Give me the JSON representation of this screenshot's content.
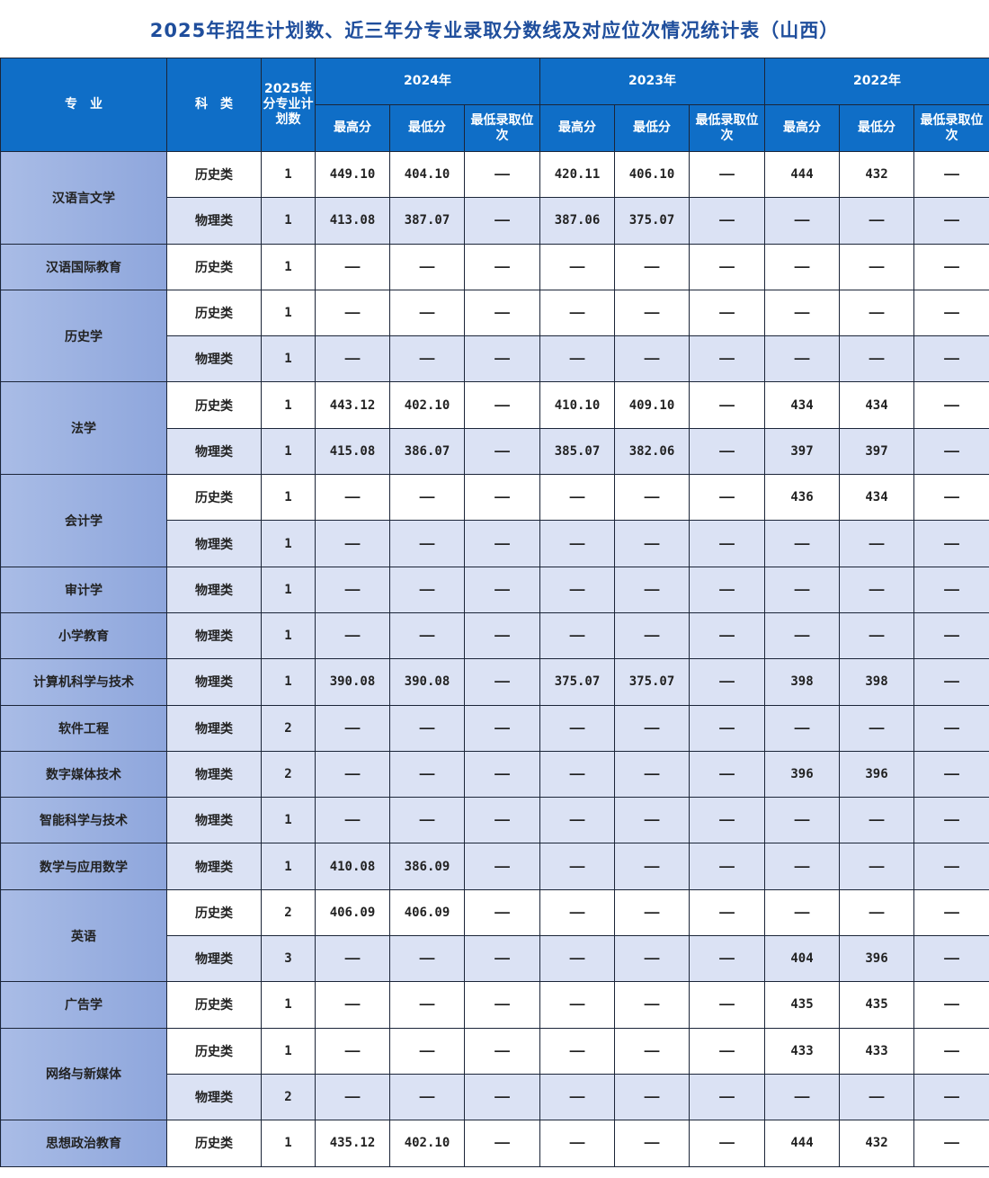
{
  "title": "2025年招生计划数、近三年分专业录取分数线及对应位次情况统计表（山西）",
  "header": {
    "major": "专　业",
    "category": "科　类",
    "plan": "2025年分专业计划数",
    "years": [
      "2024年",
      "2023年",
      "2022年"
    ],
    "sub": [
      "最高分",
      "最低分",
      "最低录取位次"
    ]
  },
  "colors": {
    "header_bg": "#0f6ec7",
    "major_bg": "#9bb0e1",
    "physics_row_bg": "#dbe2f4",
    "title": "#1f4e9c"
  },
  "groups": [
    {
      "major": "汉语言文学",
      "rows": [
        {
          "type": "历史类",
          "plan": "1",
          "values": [
            "449.10",
            "404.10",
            "——",
            "420.11",
            "406.10",
            "——",
            "444",
            "432",
            "——"
          ]
        },
        {
          "type": "物理类",
          "plan": "1",
          "values": [
            "413.08",
            "387.07",
            "——",
            "387.06",
            "375.07",
            "——",
            "——",
            "——",
            "——"
          ]
        }
      ]
    },
    {
      "major": "汉语国际教育",
      "rows": [
        {
          "type": "历史类",
          "plan": "1",
          "values": [
            "——",
            "——",
            "——",
            "——",
            "——",
            "——",
            "——",
            "——",
            "——"
          ]
        }
      ]
    },
    {
      "major": "历史学",
      "rows": [
        {
          "type": "历史类",
          "plan": "1",
          "values": [
            "——",
            "——",
            "——",
            "——",
            "——",
            "——",
            "——",
            "——",
            "——"
          ]
        },
        {
          "type": "物理类",
          "plan": "1",
          "values": [
            "——",
            "——",
            "——",
            "——",
            "——",
            "——",
            "——",
            "——",
            "——"
          ]
        }
      ]
    },
    {
      "major": "法学",
      "rows": [
        {
          "type": "历史类",
          "plan": "1",
          "values": [
            "443.12",
            "402.10",
            "——",
            "410.10",
            "409.10",
            "——",
            "434",
            "434",
            "——"
          ]
        },
        {
          "type": "物理类",
          "plan": "1",
          "values": [
            "415.08",
            "386.07",
            "——",
            "385.07",
            "382.06",
            "——",
            "397",
            "397",
            "——"
          ]
        }
      ]
    },
    {
      "major": "会计学",
      "rows": [
        {
          "type": "历史类",
          "plan": "1",
          "values": [
            "——",
            "——",
            "——",
            "——",
            "——",
            "——",
            "436",
            "434",
            "——"
          ]
        },
        {
          "type": "物理类",
          "plan": "1",
          "values": [
            "——",
            "——",
            "——",
            "——",
            "——",
            "——",
            "——",
            "——",
            "——"
          ]
        }
      ]
    },
    {
      "major": "审计学",
      "rows": [
        {
          "type": "物理类",
          "plan": "1",
          "values": [
            "——",
            "——",
            "——",
            "——",
            "——",
            "——",
            "——",
            "——",
            "——"
          ]
        }
      ]
    },
    {
      "major": "小学教育",
      "rows": [
        {
          "type": "物理类",
          "plan": "1",
          "values": [
            "——",
            "——",
            "——",
            "——",
            "——",
            "——",
            "——",
            "——",
            "——"
          ]
        }
      ]
    },
    {
      "major": "计算机科学与技术",
      "rows": [
        {
          "type": "物理类",
          "plan": "1",
          "values": [
            "390.08",
            "390.08",
            "——",
            "375.07",
            "375.07",
            "——",
            "398",
            "398",
            "——"
          ]
        }
      ]
    },
    {
      "major": "软件工程",
      "rows": [
        {
          "type": "物理类",
          "plan": "2",
          "values": [
            "——",
            "——",
            "——",
            "——",
            "——",
            "——",
            "——",
            "——",
            "——"
          ]
        }
      ]
    },
    {
      "major": "数字媒体技术",
      "rows": [
        {
          "type": "物理类",
          "plan": "2",
          "values": [
            "——",
            "——",
            "——",
            "——",
            "——",
            "——",
            "396",
            "396",
            "——"
          ]
        }
      ]
    },
    {
      "major": "智能科学与技术",
      "rows": [
        {
          "type": "物理类",
          "plan": "1",
          "values": [
            "——",
            "——",
            "——",
            "——",
            "——",
            "——",
            "——",
            "——",
            "——"
          ]
        }
      ]
    },
    {
      "major": "数学与应用数学",
      "rows": [
        {
          "type": "物理类",
          "plan": "1",
          "values": [
            "410.08",
            "386.09",
            "——",
            "——",
            "——",
            "——",
            "——",
            "——",
            "——"
          ]
        }
      ]
    },
    {
      "major": "英语",
      "rows": [
        {
          "type": "历史类",
          "plan": "2",
          "values": [
            "406.09",
            "406.09",
            "——",
            "——",
            "——",
            "——",
            "——",
            "——",
            "——"
          ]
        },
        {
          "type": "物理类",
          "plan": "3",
          "values": [
            "——",
            "——",
            "——",
            "——",
            "——",
            "——",
            "404",
            "396",
            "——"
          ]
        }
      ]
    },
    {
      "major": "广告学",
      "rows": [
        {
          "type": "历史类",
          "plan": "1",
          "values": [
            "——",
            "——",
            "——",
            "——",
            "——",
            "——",
            "435",
            "435",
            "——"
          ]
        }
      ]
    },
    {
      "major": "网络与新媒体",
      "rows": [
        {
          "type": "历史类",
          "plan": "1",
          "values": [
            "——",
            "——",
            "——",
            "——",
            "——",
            "——",
            "433",
            "433",
            "——"
          ]
        },
        {
          "type": "物理类",
          "plan": "2",
          "values": [
            "——",
            "——",
            "——",
            "——",
            "——",
            "——",
            "——",
            "——",
            "——"
          ]
        }
      ]
    },
    {
      "major": "思想政治教育",
      "rows": [
        {
          "type": "历史类",
          "plan": "1",
          "values": [
            "435.12",
            "402.10",
            "——",
            "——",
            "——",
            "——",
            "444",
            "432",
            "——"
          ]
        }
      ]
    }
  ]
}
